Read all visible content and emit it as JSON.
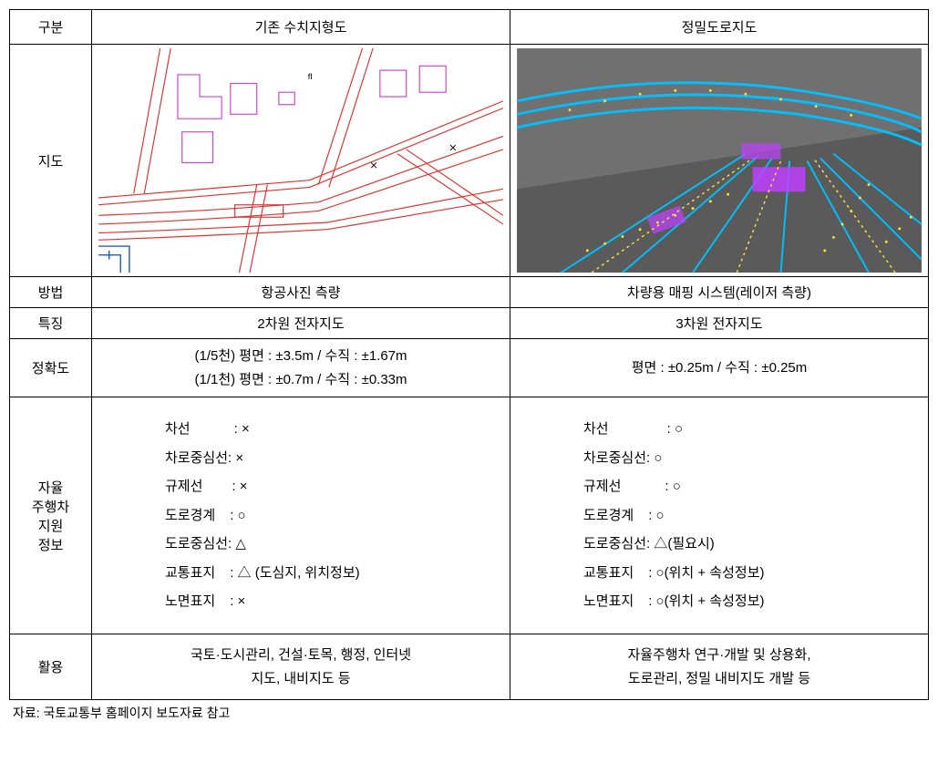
{
  "headers": {
    "category": "구분",
    "existing": "기존 수치지형도",
    "precision": "정밀도로지도"
  },
  "rows": {
    "map": "지도",
    "method": "방법",
    "feature": "특징",
    "accuracy": "정확도",
    "support": "자율\n주행차\n지원\n정보",
    "usage": "활용"
  },
  "method": {
    "existing": "항공사진 측량",
    "precision": "차량용 매핑 시스템(레이저 측량)"
  },
  "feature": {
    "existing": "2차원 전자지도",
    "precision": "3차원 전자지도"
  },
  "accuracy": {
    "existing_line1": "(1/5천) 평면 : ±3.5m / 수직 : ±1.67m",
    "existing_line2": "(1/1천) 평면 : ±0.7m / 수직 : ±0.33m",
    "precision": "평면 : ±0.25m / 수직 : ±0.25m"
  },
  "support": {
    "existing": [
      {
        "label": "차선",
        "pad": 48,
        "value": ": ×"
      },
      {
        "label": "차로중심선",
        "pad": 0,
        "value": ": ×"
      },
      {
        "label": "규제선",
        "pad": 32,
        "value": ": ×"
      },
      {
        "label": "도로경계",
        "pad": 16,
        "value": ": ○"
      },
      {
        "label": "도로중심선",
        "pad": 0,
        "value": ": △"
      },
      {
        "label": "교통표지",
        "pad": 16,
        "value": ": △ (도심지, 위치정보)"
      },
      {
        "label": "노면표지",
        "pad": 16,
        "value": ": ×"
      }
    ],
    "precision": [
      {
        "label": "차선",
        "pad": 64,
        "value": ": ○"
      },
      {
        "label": "차로중심선",
        "pad": 0,
        "value": ": ○"
      },
      {
        "label": "규제선",
        "pad": 48,
        "value": ": ○"
      },
      {
        "label": "도로경계",
        "pad": 16,
        "value": ": ○"
      },
      {
        "label": "도로중심선",
        "pad": 0,
        "value": ": △(필요시)"
      },
      {
        "label": "교통표지",
        "pad": 16,
        "value": ": ○(위치 + 속성정보)"
      },
      {
        "label": "노면표지",
        "pad": 16,
        "value": ": ○(위치 + 속성정보)"
      }
    ]
  },
  "usage": {
    "existing_line1": "국토·도시관리, 건설·토목, 행정, 인터넷",
    "existing_line2": "지도, 내비지도 등",
    "precision_line1": "자율주행차 연구·개발 및 상용화,",
    "precision_line2": "도로관리, 정밀 내비지도 개발 등"
  },
  "source": "자료: 국토교통부 홈페이지 보도자료 참고",
  "map_visual": {
    "existing": {
      "background": "#ffffff",
      "road_color": "#e03030",
      "building_color": "#d040d0",
      "river_color": "#2060c0",
      "label_color": "#000000"
    },
    "precision": {
      "background": "#707070",
      "lane_color": "#00c0ff",
      "marking_color": "#c040ff",
      "dot_color": "#ffe040",
      "ground_color": "#5a5a5a"
    }
  }
}
